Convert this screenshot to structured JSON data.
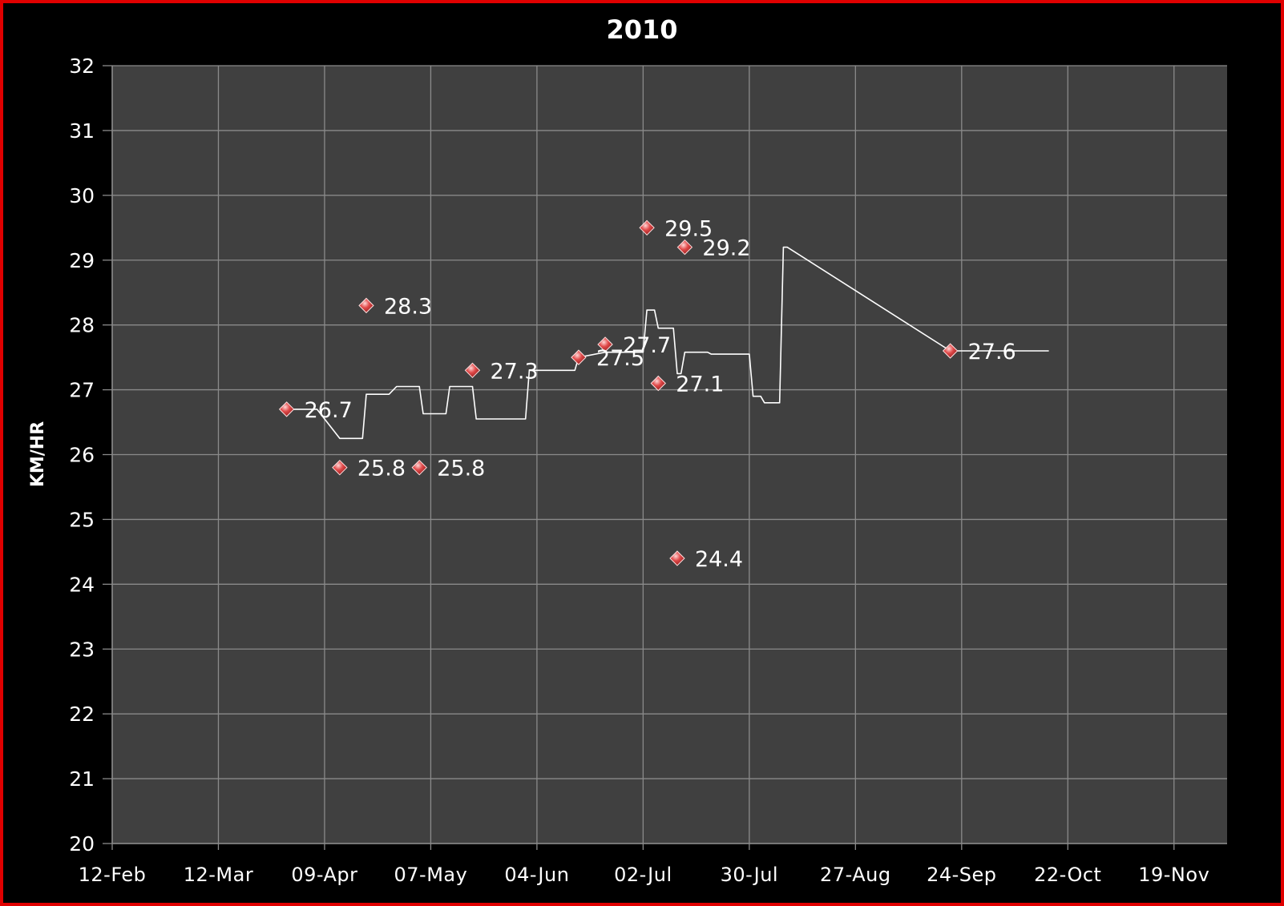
{
  "chart_data": {
    "type": "scatter",
    "title": "2010",
    "xlabel": "",
    "ylabel": "KM/HR",
    "ylim": [
      20,
      32
    ],
    "xlim": [
      "2010-02-12",
      "2010-12-03"
    ],
    "grid": true,
    "legend": "none",
    "colors": {
      "background": "#000000",
      "frame_border": "#e00000",
      "plot_area": "#404040",
      "gridline": "#8a8a8a",
      "marker": "#e04848",
      "line": "#ffffff",
      "text": "#ffffff"
    },
    "x_ticks": [
      {
        "date": "2010-02-12",
        "label": "12-Feb"
      },
      {
        "date": "2010-03-12",
        "label": "12-Mar"
      },
      {
        "date": "2010-04-09",
        "label": "09-Apr"
      },
      {
        "date": "2010-05-07",
        "label": "07-May"
      },
      {
        "date": "2010-06-04",
        "label": "04-Jun"
      },
      {
        "date": "2010-07-02",
        "label": "02-Jul"
      },
      {
        "date": "2010-07-30",
        "label": "30-Jul"
      },
      {
        "date": "2010-08-27",
        "label": "27-Aug"
      },
      {
        "date": "2010-09-24",
        "label": "24-Sep"
      },
      {
        "date": "2010-10-22",
        "label": "22-Oct"
      },
      {
        "date": "2010-11-19",
        "label": "19-Nov"
      }
    ],
    "y_ticks": [
      20,
      21,
      22,
      23,
      24,
      25,
      26,
      27,
      28,
      29,
      30,
      31,
      32
    ],
    "series": [
      {
        "kind": "markers",
        "marker": "diamond",
        "points": [
          {
            "x": "2010-03-30",
            "y": 26.7,
            "label": "26.7"
          },
          {
            "x": "2010-04-13",
            "y": 25.8,
            "label": "25.8"
          },
          {
            "x": "2010-04-20",
            "y": 28.3,
            "label": "28.3"
          },
          {
            "x": "2010-05-04",
            "y": 25.8,
            "label": "25.8"
          },
          {
            "x": "2010-05-18",
            "y": 27.3,
            "label": "27.3"
          },
          {
            "x": "2010-06-15",
            "y": 27.5,
            "label": "27.5"
          },
          {
            "x": "2010-06-22",
            "y": 27.7,
            "label": "27.7"
          },
          {
            "x": "2010-07-03",
            "y": 29.5,
            "label": "29.5"
          },
          {
            "x": "2010-07-06",
            "y": 27.1,
            "label": "27.1"
          },
          {
            "x": "2010-07-11",
            "y": 24.4,
            "label": "24.4"
          },
          {
            "x": "2010-07-13",
            "y": 29.2,
            "label": "29.2"
          },
          {
            "x": "2010-09-21",
            "y": 27.6,
            "label": "27.6"
          }
        ]
      },
      {
        "kind": "line",
        "points": [
          {
            "x": "2010-03-30",
            "y": 26.7
          },
          {
            "x": "2010-04-07",
            "y": 26.7
          },
          {
            "x": "2010-04-13",
            "y": 26.25
          },
          {
            "x": "2010-04-19",
            "y": 26.25
          },
          {
            "x": "2010-04-20",
            "y": 26.93
          },
          {
            "x": "2010-04-26",
            "y": 26.93
          },
          {
            "x": "2010-04-28",
            "y": 27.05
          },
          {
            "x": "2010-05-04",
            "y": 27.05
          },
          {
            "x": "2010-05-05",
            "y": 26.63
          },
          {
            "x": "2010-05-11",
            "y": 26.63
          },
          {
            "x": "2010-05-12",
            "y": 27.05
          },
          {
            "x": "2010-05-18",
            "y": 27.05
          },
          {
            "x": "2010-05-19",
            "y": 26.55
          },
          {
            "x": "2010-06-01",
            "y": 26.55
          },
          {
            "x": "2010-06-02",
            "y": 27.3
          },
          {
            "x": "2010-06-14",
            "y": 27.3
          },
          {
            "x": "2010-06-15",
            "y": 27.5
          },
          {
            "x": "2010-06-22",
            "y": 27.58
          },
          {
            "x": "2010-07-02",
            "y": 27.58
          },
          {
            "x": "2010-07-03",
            "y": 28.23
          },
          {
            "x": "2010-07-05",
            "y": 28.23
          },
          {
            "x": "2010-07-06",
            "y": 27.95
          },
          {
            "x": "2010-07-10",
            "y": 27.95
          },
          {
            "x": "2010-07-11",
            "y": 27.25
          },
          {
            "x": "2010-07-12",
            "y": 27.25
          },
          {
            "x": "2010-07-13",
            "y": 27.58
          },
          {
            "x": "2010-07-19",
            "y": 27.58
          },
          {
            "x": "2010-07-20",
            "y": 27.55
          },
          {
            "x": "2010-07-30",
            "y": 27.55
          },
          {
            "x": "2010-07-31",
            "y": 26.9
          },
          {
            "x": "2010-08-02",
            "y": 26.9
          },
          {
            "x": "2010-08-03",
            "y": 26.8
          },
          {
            "x": "2010-08-07",
            "y": 26.8
          },
          {
            "x": "2010-08-08",
            "y": 29.2
          },
          {
            "x": "2010-08-09",
            "y": 29.2
          },
          {
            "x": "2010-09-21",
            "y": 27.6
          },
          {
            "x": "2010-10-17",
            "y": 27.6
          }
        ]
      }
    ]
  }
}
